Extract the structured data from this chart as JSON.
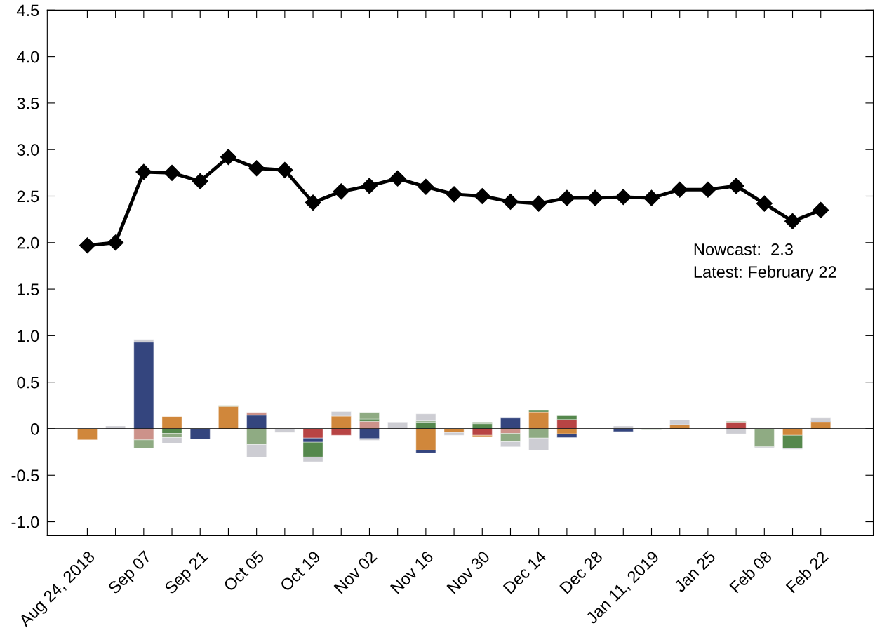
{
  "chart_data": {
    "type": "bar",
    "stacked": true,
    "categories": [
      "Aug 24, 2018",
      null,
      "Sep 07",
      null,
      "Sep 21",
      null,
      "Oct 05",
      null,
      "Oct 19",
      null,
      "Nov 02",
      null,
      "Nov 16",
      null,
      "Nov 30",
      null,
      "Dec 14",
      null,
      "Dec 28",
      null,
      "Jan 11, 2019",
      null,
      "Jan 25",
      null,
      "Feb 08",
      null,
      "Feb 22"
    ],
    "series": [
      {
        "color": "#b84444",
        "values": [
          null,
          null,
          null,
          null,
          null,
          null,
          null,
          null,
          -0.1,
          -0.07,
          null,
          null,
          null,
          null,
          -0.07,
          null,
          null,
          0.1,
          null,
          null,
          null,
          null,
          null,
          0.065,
          null,
          null,
          null
        ]
      },
      {
        "color": "#d0873b",
        "values": [
          -0.12,
          null,
          null,
          0.13,
          null,
          0.24,
          null,
          null,
          null,
          0.135,
          null,
          null,
          -0.23,
          -0.04,
          -0.02,
          null,
          0.18,
          -0.055,
          null,
          null,
          null,
          0.045,
          null,
          null,
          null,
          -0.07,
          0.07
        ]
      },
      {
        "color": "#34457e",
        "values": [
          null,
          null,
          0.93,
          null,
          -0.11,
          null,
          0.145,
          null,
          -0.045,
          null,
          -0.105,
          null,
          -0.03,
          null,
          null,
          0.115,
          null,
          -0.04,
          null,
          -0.03,
          null,
          null,
          null,
          null,
          null,
          null,
          0.01
        ]
      },
      {
        "color": "#cc928a",
        "values": [
          null,
          null,
          -0.12,
          null,
          null,
          null,
          0.03,
          null,
          null,
          null,
          0.08,
          null,
          null,
          null,
          null,
          -0.05,
          null,
          null,
          null,
          null,
          null,
          null,
          null,
          null,
          null,
          null,
          null
        ]
      },
      {
        "color": "#55884d",
        "values": [
          null,
          null,
          null,
          -0.05,
          null,
          null,
          null,
          null,
          -0.16,
          null,
          0.025,
          null,
          0.065,
          null,
          0.055,
          null,
          0.015,
          0.04,
          null,
          null,
          -0.01,
          null,
          null,
          null,
          null,
          -0.14,
          null
        ]
      },
      {
        "color": "#8fab83",
        "values": [
          null,
          null,
          -0.09,
          -0.045,
          null,
          0.01,
          -0.17,
          null,
          null,
          null,
          0.07,
          null,
          0.02,
          null,
          0.01,
          -0.09,
          -0.1,
          null,
          null,
          null,
          null,
          null,
          null,
          0.015,
          -0.195,
          null,
          null
        ]
      },
      {
        "color": "#cdcdd3",
        "values": [
          null,
          0.03,
          0.03,
          -0.06,
          null,
          null,
          -0.14,
          -0.04,
          -0.05,
          0.05,
          -0.02,
          0.065,
          0.075,
          -0.03,
          null,
          -0.055,
          -0.135,
          null,
          null,
          0.03,
          null,
          0.05,
          null,
          -0.055,
          -0.01,
          -0.01,
          0.035
        ]
      },
      {
        "type": "line",
        "color": "#000000",
        "marker": "diamond",
        "values": [
          1.97,
          2.0,
          2.76,
          2.75,
          2.66,
          2.92,
          2.8,
          2.78,
          2.43,
          2.55,
          2.61,
          2.69,
          2.6,
          2.52,
          2.5,
          2.44,
          2.42,
          2.48,
          2.48,
          2.49,
          2.48,
          2.57,
          2.57,
          2.61,
          2.42,
          2.23,
          2.35
        ]
      }
    ],
    "ylim": [
      -1.15,
      4.5
    ],
    "yticks": [
      {
        "value": -1,
        "label": "-1.0"
      },
      -0.5,
      0,
      0.5,
      {
        "value": 1,
        "label": "1.0"
      },
      1.5,
      {
        "value": 2,
        "label": "2.0"
      },
      2.5,
      {
        "value": 3,
        "label": "3.0"
      },
      3.5,
      {
        "value": 4,
        "label": "4.0"
      },
      4.5
    ],
    "ref_lines": [
      {
        "axis": "y",
        "value": 0,
        "color": "#000000"
      }
    ],
    "annotations": [
      "Nowcast:  2.3",
      "Latest: February 22"
    ],
    "grid": false,
    "legend": false
  }
}
